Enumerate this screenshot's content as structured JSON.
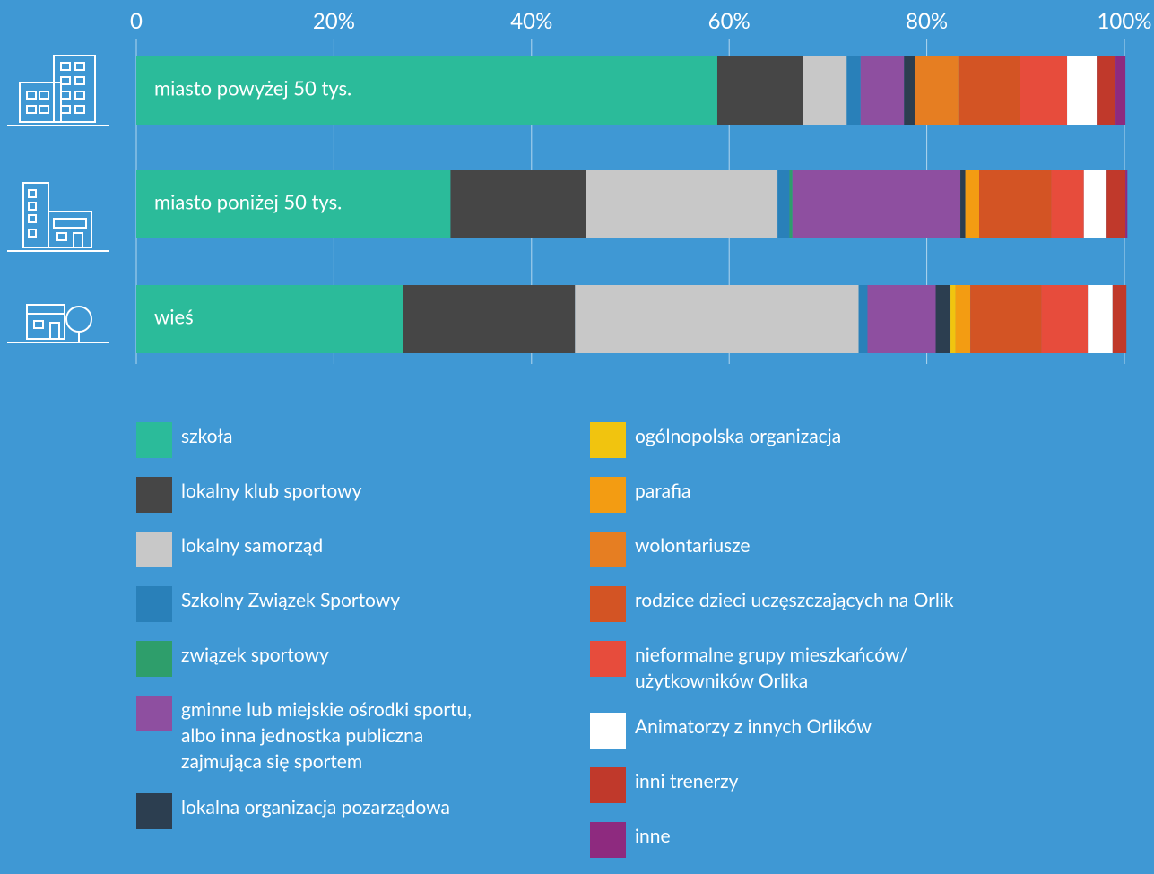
{
  "chart_data": {
    "type": "stacked-bar-horizontal",
    "categories": [
      "miasto powyżej 50 tys.",
      "miasto poniżej 50 tys.",
      "wieś"
    ],
    "xlim": [
      0,
      100
    ],
    "xticks": [
      0,
      {
        "value": 20,
        "label": "20%"
      },
      {
        "value": 40,
        "label": "40%"
      },
      {
        "value": 60,
        "label": "60%"
      },
      {
        "value": 80,
        "label": "80%"
      },
      {
        "value": 100,
        "label": "100%"
      }
    ],
    "grid": true,
    "series": [
      {
        "name": "szkoła",
        "color": "#2bbb9a",
        "values": [
          58.8,
          31.8,
          27.0
        ]
      },
      {
        "name": "lokalny klub sportowy",
        "color": "#464646",
        "values": [
          8.7,
          13.7,
          17.4
        ]
      },
      {
        "name": "lokalny samorząd",
        "color": "#c8c8c8",
        "values": [
          4.4,
          19.4,
          28.7
        ]
      },
      {
        "name": "Szkolny Związek Sportowy",
        "color": "#2980b9",
        "values": [
          1.4,
          1.2,
          0.9
        ]
      },
      {
        "name": "związek sportowy",
        "color": "#2e9e6b",
        "values": [
          0,
          0.3,
          0
        ]
      },
      {
        "name": "gminne lub miejskie ośrodki sportu,\nalbo inna jednostka publiczna\nzajmująca się sportem",
        "color": "#8e4fa0",
        "values": [
          4.4,
          17.0,
          6.9
        ]
      },
      {
        "name": "lokalna organizacja pozarządowa",
        "color": "#2c3e50",
        "values": [
          1.1,
          0.5,
          1.5
        ]
      },
      {
        "name": "ogólnopolska organizacja",
        "color": "#f1c40f",
        "values": [
          0,
          0,
          0.5
        ]
      },
      {
        "name": "parafia",
        "color": "#f39c12",
        "values": [
          0,
          1.4,
          1.5
        ]
      },
      {
        "name": "wolontariusze",
        "color": "#e67e22",
        "values": [
          4.4,
          0,
          0
        ]
      },
      {
        "name": "rodzice dzieci uczęszczających na Orlik",
        "color": "#d35424",
        "values": [
          6.2,
          7.3,
          7.2
        ]
      },
      {
        "name": "nieformalne grupy mieszkańców/\nużytkowników Orlika",
        "color": "#e74c3c",
        "values": [
          4.8,
          3.3,
          4.7
        ]
      },
      {
        "name": "Animatorzy z innych Orlików",
        "color": "#ffffff",
        "values": [
          3.0,
          2.3,
          2.5
        ]
      },
      {
        "name": "inni trenerzy",
        "color": "#c0392b",
        "values": [
          1.9,
          1.9,
          1.4
        ]
      },
      {
        "name": "inne",
        "color": "#8e2a7f",
        "values": [
          1.0,
          0.2,
          0
        ]
      }
    ]
  }
}
